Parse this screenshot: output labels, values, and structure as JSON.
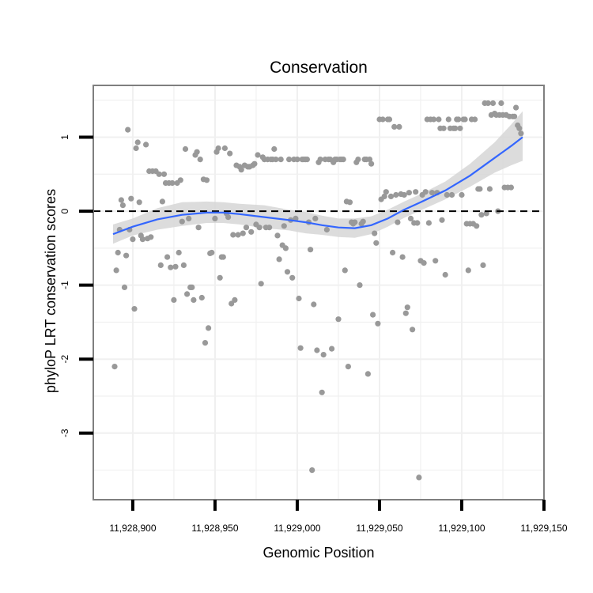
{
  "chart_data": {
    "type": "scatter",
    "title": "Conservation",
    "xlabel": "Genomic Position",
    "ylabel": "phyloP LRT conservation scores",
    "xlim": [
      11928876,
      11929150
    ],
    "ylim": [
      -3.9,
      1.7
    ],
    "x_ticks": [
      {
        "value": 11928900,
        "label": "11,928,900"
      },
      {
        "value": 11928950,
        "label": "11,928,950"
      },
      {
        "value": 11929000,
        "label": "11,929,000"
      },
      {
        "value": 11929050,
        "label": "11,929,050"
      },
      {
        "value": 11929100,
        "label": "11,929,100"
      },
      {
        "value": 11929150,
        "label": "11,929,150"
      }
    ],
    "y_ticks": [
      {
        "value": -3,
        "label": "-3"
      },
      {
        "value": -2,
        "label": "-2"
      },
      {
        "value": -1,
        "label": "-1"
      },
      {
        "value": 0,
        "label": "0"
      },
      {
        "value": 1,
        "label": "1"
      }
    ],
    "reference_line_y": 0,
    "colors": {
      "points": "#999999",
      "smooth": "#3366ff",
      "band": "#d6d6d6",
      "grid": "#f0f0f0",
      "frame": "#7f7f7f"
    },
    "points": [
      [
        11928889,
        -2.1
      ],
      [
        11928890,
        -0.8
      ],
      [
        11928891,
        -0.56
      ],
      [
        11928892,
        -0.25
      ],
      [
        11928893,
        0.15
      ],
      [
        11928894,
        0.08
      ],
      [
        11928895,
        -1.03
      ],
      [
        11928896,
        -0.6
      ],
      [
        11928897,
        1.1
      ],
      [
        11928898,
        -0.25
      ],
      [
        11928899,
        0.17
      ],
      [
        11928900,
        -0.38
      ],
      [
        11928901,
        -1.32
      ],
      [
        11928902,
        0.85
      ],
      [
        11928903,
        0.93
      ],
      [
        11928904,
        0.12
      ],
      [
        11928905,
        -0.33
      ],
      [
        11928906,
        -0.38
      ],
      [
        11928908,
        0.9
      ],
      [
        11928909,
        -0.37
      ],
      [
        11928910,
        0.54
      ],
      [
        11928911,
        -0.35
      ],
      [
        11928912,
        0.54
      ],
      [
        11928914,
        0.54
      ],
      [
        11928916,
        0.5
      ],
      [
        11928917,
        -0.73
      ],
      [
        11928918,
        0.13
      ],
      [
        11928919,
        0.5
      ],
      [
        11928920,
        0.38
      ],
      [
        11928921,
        -0.62
      ],
      [
        11928922,
        0.38
      ],
      [
        11928923,
        -0.76
      ],
      [
        11928924,
        0.38
      ],
      [
        11928925,
        -1.2
      ],
      [
        11928926,
        -0.75
      ],
      [
        11928927,
        0.38
      ],
      [
        11928928,
        -0.56
      ],
      [
        11928929,
        0.42
      ],
      [
        11928930,
        -0.14
      ],
      [
        11928931,
        -0.73
      ],
      [
        11928932,
        0.84
      ],
      [
        11928933,
        -1.12
      ],
      [
        11928934,
        -0.1
      ],
      [
        11928935,
        -1.03
      ],
      [
        11928936,
        -1.03
      ],
      [
        11928937,
        -1.2
      ],
      [
        11928938,
        0.76
      ],
      [
        11928939,
        0.8
      ],
      [
        11928940,
        -0.22
      ],
      [
        11928941,
        0.7
      ],
      [
        11928942,
        -1.17
      ],
      [
        11928943,
        0.43
      ],
      [
        11928944,
        -1.78
      ],
      [
        11928945,
        0.42
      ],
      [
        11928946,
        -1.58
      ],
      [
        11928947,
        -0.57
      ],
      [
        11928948,
        -0.56
      ],
      [
        11928950,
        -0.1
      ],
      [
        11928951,
        0.8
      ],
      [
        11928952,
        0.85
      ],
      [
        11928953,
        -0.9
      ],
      [
        11928954,
        -0.62
      ],
      [
        11928955,
        -0.62
      ],
      [
        11928956,
        0.85
      ],
      [
        11928957,
        -0.03
      ],
      [
        11928958,
        -0.08
      ],
      [
        11928959,
        0.78
      ],
      [
        11928960,
        -1.25
      ],
      [
        11928961,
        -0.32
      ],
      [
        11928962,
        -1.2
      ],
      [
        11928963,
        0.62
      ],
      [
        11928964,
        -0.32
      ],
      [
        11928965,
        0.6
      ],
      [
        11928966,
        0.56
      ],
      [
        11928967,
        -0.3
      ],
      [
        11928968,
        0.62
      ],
      [
        11928969,
        -0.22
      ],
      [
        11928970,
        0.6
      ],
      [
        11928971,
        0.6
      ],
      [
        11928972,
        -0.28
      ],
      [
        11928973,
        0.62
      ],
      [
        11928974,
        0.64
      ],
      [
        11928975,
        -0.18
      ],
      [
        11928976,
        0.76
      ],
      [
        11928977,
        -0.22
      ],
      [
        11928978,
        -0.98
      ],
      [
        11928979,
        0.73
      ],
      [
        11928980,
        0.7
      ],
      [
        11928981,
        -0.22
      ],
      [
        11928982,
        0.7
      ],
      [
        11928983,
        -0.22
      ],
      [
        11928984,
        0.7
      ],
      [
        11928985,
        0.7
      ],
      [
        11928986,
        0.84
      ],
      [
        11928987,
        0.7
      ],
      [
        11928988,
        -0.33
      ],
      [
        11928989,
        -0.65
      ],
      [
        11928990,
        0.7
      ],
      [
        11928991,
        -0.46
      ],
      [
        11928992,
        -0.2
      ],
      [
        11928993,
        -0.5
      ],
      [
        11928994,
        -0.82
      ],
      [
        11928995,
        0.7
      ],
      [
        11928996,
        -0.12
      ],
      [
        11928997,
        -0.9
      ],
      [
        11928998,
        0.7
      ],
      [
        11928999,
        -0.1
      ],
      [
        11929000,
        0.7
      ],
      [
        11929001,
        -1.18
      ],
      [
        11929002,
        -1.85
      ],
      [
        11929003,
        0.7
      ],
      [
        11929004,
        0.7
      ],
      [
        11929005,
        0.7
      ],
      [
        11929006,
        0.7
      ],
      [
        11929007,
        -0.15
      ],
      [
        11929008,
        -0.52
      ],
      [
        11929009,
        -3.5
      ],
      [
        11929010,
        -1.26
      ],
      [
        11929011,
        -0.1
      ],
      [
        11929012,
        -1.88
      ],
      [
        11929013,
        0.66
      ],
      [
        11929014,
        0.7
      ],
      [
        11929015,
        -2.45
      ],
      [
        11929016,
        -1.94
      ],
      [
        11929017,
        0.7
      ],
      [
        11929018,
        -0.25
      ],
      [
        11929019,
        0.7
      ],
      [
        11929020,
        0.7
      ],
      [
        11929021,
        -1.86
      ],
      [
        11929022,
        0.66
      ],
      [
        11929023,
        0.7
      ],
      [
        11929024,
        0.7
      ],
      [
        11929025,
        -1.46
      ],
      [
        11929026,
        0.7
      ],
      [
        11929027,
        0.7
      ],
      [
        11929028,
        0.7
      ],
      [
        11929029,
        -0.8
      ],
      [
        11929030,
        0.13
      ],
      [
        11929031,
        -2.1
      ],
      [
        11929032,
        0.12
      ],
      [
        11929033,
        -0.15
      ],
      [
        11929034,
        -0.17
      ],
      [
        11929035,
        -0.15
      ],
      [
        11929036,
        0.66
      ],
      [
        11929037,
        0.7
      ],
      [
        11929038,
        -1.0
      ],
      [
        11929039,
        -0.17
      ],
      [
        11929040,
        -0.14
      ],
      [
        11929041,
        0.7
      ],
      [
        11929042,
        0.7
      ],
      [
        11929043,
        -2.2
      ],
      [
        11929044,
        0.7
      ],
      [
        11929045,
        0.64
      ],
      [
        11929046,
        -1.4
      ],
      [
        11929047,
        -0.3
      ],
      [
        11929048,
        -0.43
      ],
      [
        11929049,
        -1.52
      ],
      [
        11929050,
        1.24
      ],
      [
        11929051,
        0.16
      ],
      [
        11929052,
        1.24
      ],
      [
        11929053,
        0.2
      ],
      [
        11929054,
        0.26
      ],
      [
        11929055,
        1.24
      ],
      [
        11929056,
        1.24
      ],
      [
        11929057,
        0.2
      ],
      [
        11929058,
        -0.56
      ],
      [
        11929059,
        1.14
      ],
      [
        11929060,
        0.22
      ],
      [
        11929061,
        -0.15
      ],
      [
        11929062,
        1.14
      ],
      [
        11929063,
        0.23
      ],
      [
        11929064,
        -0.62
      ],
      [
        11929065,
        0.22
      ],
      [
        11929066,
        -1.38
      ],
      [
        11929067,
        -1.3
      ],
      [
        11929068,
        0.25
      ],
      [
        11929069,
        -0.1
      ],
      [
        11929070,
        -1.6
      ],
      [
        11929071,
        -0.16
      ],
      [
        11929072,
        0.26
      ],
      [
        11929073,
        -0.16
      ],
      [
        11929074,
        -3.6
      ],
      [
        11929075,
        -0.67
      ],
      [
        11929076,
        0.22
      ],
      [
        11929077,
        -0.7
      ],
      [
        11929078,
        0.26
      ],
      [
        11929079,
        1.24
      ],
      [
        11929080,
        -0.16
      ],
      [
        11929081,
        1.24
      ],
      [
        11929082,
        0.25
      ],
      [
        11929083,
        1.24
      ],
      [
        11929084,
        -0.67
      ],
      [
        11929085,
        0.25
      ],
      [
        11929086,
        1.24
      ],
      [
        11929087,
        1.12
      ],
      [
        11929088,
        -0.12
      ],
      [
        11929089,
        1.12
      ],
      [
        11929090,
        -0.86
      ],
      [
        11929091,
        0.22
      ],
      [
        11929092,
        1.24
      ],
      [
        11929093,
        1.12
      ],
      [
        11929094,
        0.22
      ],
      [
        11929095,
        1.12
      ],
      [
        11929096,
        1.12
      ],
      [
        11929097,
        1.24
      ],
      [
        11929098,
        1.24
      ],
      [
        11929099,
        1.12
      ],
      [
        11929100,
        0.22
      ],
      [
        11929101,
        1.24
      ],
      [
        11929102,
        1.24
      ],
      [
        11929103,
        -0.17
      ],
      [
        11929104,
        -0.8
      ],
      [
        11929105,
        -0.17
      ],
      [
        11929106,
        1.24
      ],
      [
        11929107,
        -0.17
      ],
      [
        11929108,
        1.24
      ],
      [
        11929109,
        -0.2
      ],
      [
        11929110,
        0.3
      ],
      [
        11929111,
        0.3
      ],
      [
        11929112,
        -0.05
      ],
      [
        11929113,
        -0.73
      ],
      [
        11929114,
        1.46
      ],
      [
        11929115,
        -0.03
      ],
      [
        11929116,
        1.46
      ],
      [
        11929117,
        0.3
      ],
      [
        11929118,
        1.3
      ],
      [
        11929119,
        1.46
      ],
      [
        11929120,
        1.32
      ],
      [
        11929121,
        1.3
      ],
      [
        11929122,
        0.0
      ],
      [
        11929123,
        1.3
      ],
      [
        11929124,
        1.46
      ],
      [
        11929125,
        1.3
      ],
      [
        11929126,
        0.32
      ],
      [
        11929127,
        1.3
      ],
      [
        11929128,
        0.32
      ],
      [
        11929129,
        1.28
      ],
      [
        11929130,
        0.32
      ],
      [
        11929131,
        1.28
      ],
      [
        11929132,
        1.28
      ],
      [
        11929133,
        1.4
      ],
      [
        11929134,
        1.16
      ],
      [
        11929135,
        1.12
      ],
      [
        11929136,
        1.05
      ]
    ],
    "smooth": {
      "fit": [
        [
          11928888,
          -0.31
        ],
        [
          11928900,
          -0.21
        ],
        [
          11928915,
          -0.11
        ],
        [
          11928930,
          -0.05
        ],
        [
          11928945,
          -0.02
        ],
        [
          11928955,
          -0.02
        ],
        [
          11928965,
          -0.04
        ],
        [
          11928980,
          -0.08
        ],
        [
          11928995,
          -0.12
        ],
        [
          11929005,
          -0.15
        ],
        [
          11929015,
          -0.19
        ],
        [
          11929025,
          -0.22
        ],
        [
          11929035,
          -0.23
        ],
        [
          11929045,
          -0.19
        ],
        [
          11929055,
          -0.1
        ],
        [
          11929065,
          0.02
        ],
        [
          11929075,
          0.12
        ],
        [
          11929090,
          0.28
        ],
        [
          11929105,
          0.48
        ],
        [
          11929120,
          0.72
        ],
        [
          11929130,
          0.88
        ],
        [
          11929137,
          1.0
        ]
      ],
      "upper": [
        [
          11928888,
          -0.18
        ],
        [
          11928900,
          -0.1
        ],
        [
          11928915,
          0.04
        ],
        [
          11928930,
          0.12
        ],
        [
          11928945,
          0.13
        ],
        [
          11928955,
          0.12
        ],
        [
          11928965,
          0.1
        ],
        [
          11928980,
          0.08
        ],
        [
          11928995,
          0.02
        ],
        [
          11929005,
          -0.01
        ],
        [
          11929015,
          -0.06
        ],
        [
          11929025,
          -0.1
        ],
        [
          11929035,
          -0.1
        ],
        [
          11929045,
          -0.07
        ],
        [
          11929055,
          0.02
        ],
        [
          11929065,
          0.13
        ],
        [
          11929075,
          0.23
        ],
        [
          11929090,
          0.4
        ],
        [
          11929105,
          0.64
        ],
        [
          11929120,
          0.93
        ],
        [
          11929130,
          1.17
        ],
        [
          11929137,
          1.35
        ]
      ],
      "lower": [
        [
          11928888,
          -0.44
        ],
        [
          11928900,
          -0.33
        ],
        [
          11928915,
          -0.25
        ],
        [
          11928930,
          -0.2
        ],
        [
          11928945,
          -0.16
        ],
        [
          11928955,
          -0.16
        ],
        [
          11928965,
          -0.18
        ],
        [
          11928980,
          -0.23
        ],
        [
          11928995,
          -0.26
        ],
        [
          11929005,
          -0.3
        ],
        [
          11929015,
          -0.32
        ],
        [
          11929025,
          -0.35
        ],
        [
          11929035,
          -0.36
        ],
        [
          11929045,
          -0.31
        ],
        [
          11929055,
          -0.21
        ],
        [
          11929065,
          -0.09
        ],
        [
          11929075,
          0.01
        ],
        [
          11929090,
          0.16
        ],
        [
          11929105,
          0.33
        ],
        [
          11929120,
          0.52
        ],
        [
          11929130,
          0.62
        ],
        [
          11929137,
          0.68
        ]
      ]
    }
  }
}
